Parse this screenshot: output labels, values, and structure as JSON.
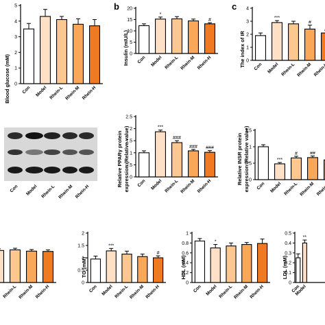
{
  "figure": {
    "categories": [
      "Con",
      "Model",
      "Rhein-L",
      "Rhein-M",
      "Rhein-H"
    ],
    "colors": [
      "#ffffff",
      "#fde0c5",
      "#fcc890",
      "#f9a85a",
      "#f07a22"
    ],
    "edge_color": "#000000"
  },
  "blot": {
    "lane_labels": [
      "Con",
      "Model",
      "Rhein-L",
      "Rhein-M",
      "Rhein-H"
    ],
    "band_rows": 3
  },
  "chart_data": [
    {
      "id": "glucose",
      "type": "bar",
      "panel_letter": "",
      "ylabel": "Blood glucose (mM)",
      "ylim": [
        0,
        5
      ],
      "yticks": [
        0,
        1,
        2,
        3,
        4,
        5
      ],
      "categories": [
        "Con",
        "Model",
        "Rhein-L",
        "Rhein-M",
        "Rhein-H"
      ],
      "values": [
        3.5,
        4.3,
        4.1,
        3.8,
        3.7
      ],
      "errors": [
        0.35,
        0.45,
        0.2,
        0.35,
        0.4
      ],
      "annotations": [
        "",
        "",
        "",
        "",
        ""
      ],
      "show_categories": true
    },
    {
      "id": "insulin",
      "type": "bar",
      "panel_letter": "b",
      "ylabel": "Insulin (mIU/L)",
      "ylim": [
        0,
        20
      ],
      "yticks": [
        0,
        5,
        10,
        15,
        20
      ],
      "categories": [
        "Con",
        "Model",
        "Rhein-L",
        "Rhein-M",
        "Rhein-H"
      ],
      "values": [
        12.3,
        15.2,
        15.3,
        14.4,
        13.1
      ],
      "errors": [
        0.8,
        0.9,
        1.0,
        0.8,
        0.5
      ],
      "annotations": [
        "",
        "*",
        "",
        "",
        "#"
      ],
      "show_categories": true
    },
    {
      "id": "ir",
      "type": "bar",
      "panel_letter": "c",
      "ylabel": "The index of IR",
      "ylim": [
        0,
        4
      ],
      "yticks": [
        0,
        1,
        2,
        3,
        4
      ],
      "categories": [
        "Con",
        "Model",
        "Rhein-L",
        "Rhein-M",
        "Rhein-H"
      ],
      "values": [
        1.9,
        2.9,
        2.8,
        2.4,
        2.1
      ],
      "errors": [
        0.2,
        0.15,
        0.2,
        0.3,
        0.2
      ],
      "annotations": [
        "",
        "***",
        "",
        "#",
        ""
      ],
      "show_categories": true
    },
    {
      "id": "ppar",
      "type": "bar",
      "panel_letter": "",
      "ylabel": "Relative PPARγ protein expression (Relative value)",
      "ylim": [
        0,
        2.5
      ],
      "yticks": [
        0.0,
        0.5,
        1.0,
        1.5,
        2.0,
        2.5
      ],
      "categories": [
        "Con",
        "Model",
        "Rhein-L",
        "Rhein-M",
        "Rhein-H"
      ],
      "values": [
        1.0,
        1.87,
        1.42,
        1.08,
        1.02
      ],
      "errors": [
        0.08,
        0.07,
        0.08,
        0.06,
        0.07
      ],
      "annotations": [
        "",
        "***",
        "###",
        "###",
        "###"
      ],
      "show_categories": true
    },
    {
      "id": "insr",
      "type": "bar",
      "panel_letter": "",
      "ylabel": "Relative INSR protein expression (Relative value)",
      "ylim": [
        0,
        1.5
      ],
      "yticks": [
        0.0,
        0.5,
        1.0,
        1.5
      ],
      "categories": [
        "Con",
        "Model",
        "Rhein-L",
        "Rhein-M",
        "Rhein-H"
      ],
      "values": [
        1.0,
        0.48,
        0.66,
        0.67,
        0.6
      ],
      "errors": [
        0.06,
        0.04,
        0.05,
        0.05,
        0.05
      ],
      "annotations": [
        "",
        "***",
        "#",
        "##",
        ""
      ],
      "show_categories": true
    },
    {
      "id": "tc",
      "type": "bar",
      "panel_letter": "",
      "ylabel": "",
      "ylim": [
        0,
        1.5
      ],
      "yticks": [],
      "categories": [
        "Con",
        "Model",
        "Rhein-L",
        "Rhein-M",
        "Rhein-H"
      ],
      "values": [
        1.05,
        1.0,
        1.02,
        0.98,
        0.97
      ],
      "errors": [
        0.05,
        0.05,
        0.05,
        0.05,
        0.05
      ],
      "annotations": [
        "",
        "",
        "",
        "",
        ""
      ],
      "show_categories": true
    },
    {
      "id": "tg",
      "type": "bar",
      "panel_letter": "",
      "ylabel": "TG (mM)",
      "ylim": [
        0,
        2
      ],
      "yticks": [
        0.0,
        0.5,
        1.0,
        1.5,
        2.0
      ],
      "categories": [
        "Con",
        "Model",
        "Rhein-L",
        "Rhein-M",
        "Rhein-H"
      ],
      "values": [
        0.95,
        1.28,
        1.15,
        1.05,
        1.0
      ],
      "errors": [
        0.12,
        0.1,
        0.12,
        0.1,
        0.08
      ],
      "annotations": [
        "",
        "***",
        "",
        "",
        "#"
      ],
      "show_categories": true
    },
    {
      "id": "hdl",
      "type": "bar",
      "panel_letter": "",
      "ylabel": "HDL (mM)",
      "ylim": [
        0,
        1
      ],
      "yticks": [
        0.0,
        0.2,
        0.4,
        0.6,
        0.8,
        1.0
      ],
      "categories": [
        "Con",
        "Model",
        "Rhein-L",
        "Rhein-M",
        "Rhein-H"
      ],
      "values": [
        0.84,
        0.7,
        0.74,
        0.77,
        0.79
      ],
      "errors": [
        0.05,
        0.07,
        0.06,
        0.04,
        0.09
      ],
      "annotations": [
        "",
        "*",
        "",
        "",
        ""
      ],
      "show_categories": true
    },
    {
      "id": "ldl",
      "type": "bar",
      "panel_letter": "",
      "ylabel": "LDL (mM)",
      "ylim": [
        0,
        0.5
      ],
      "yticks": [
        0.0,
        0.1,
        0.2,
        0.3,
        0.4,
        0.5
      ],
      "categories": [
        "Con",
        "Model"
      ],
      "values": [
        0.25,
        0.4
      ],
      "errors": [
        0.04,
        0.03
      ],
      "annotations": [
        "",
        "**"
      ],
      "show_categories": true
    }
  ]
}
